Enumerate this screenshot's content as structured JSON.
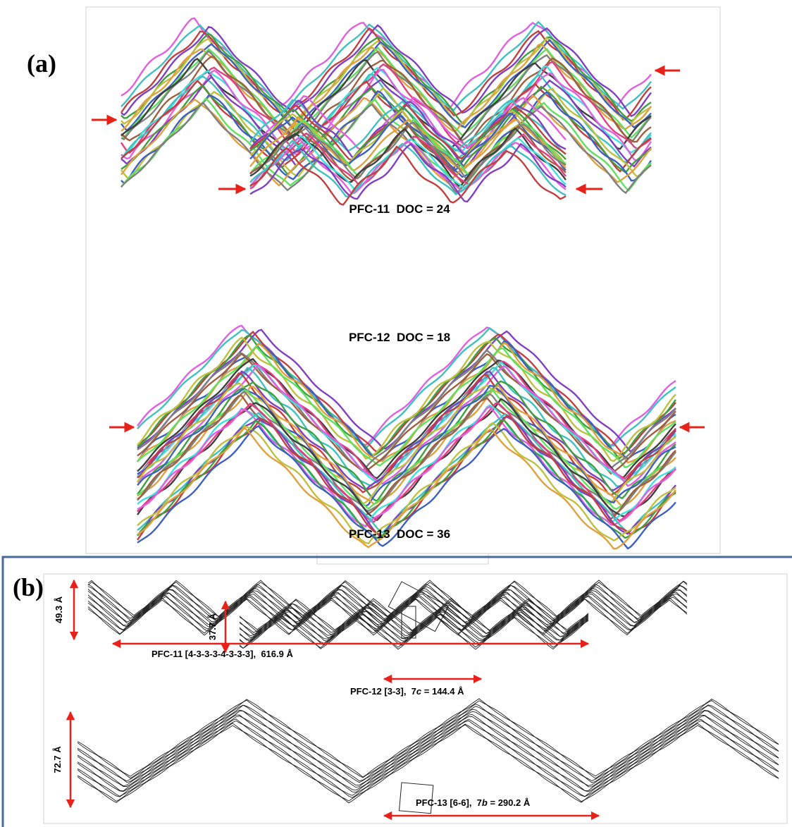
{
  "panel_a": {
    "label": "(a)",
    "structures": [
      {
        "caption": "PFC-11  DOC = 24"
      },
      {
        "caption": "PFC-12  DOC = 18"
      },
      {
        "caption": "PFC-13  DOC = 36"
      }
    ]
  },
  "panel_b": {
    "label": "(b)",
    "structures": [
      {
        "height_label": "49.3 Å",
        "length_label": [
          "PFC-11 [4-3-3-3-4-3-3-3],  616.9 Å"
        ]
      },
      {
        "height_label": "37.7 Å",
        "length_label": [
          "PFC-12 [3-3],  7",
          "c",
          " = 144.4 Å"
        ]
      },
      {
        "height_label": "72.7 Å",
        "length_label": [
          "PFC-13 [6-6],  7",
          "b",
          " = 290.2 Å"
        ]
      }
    ]
  }
}
